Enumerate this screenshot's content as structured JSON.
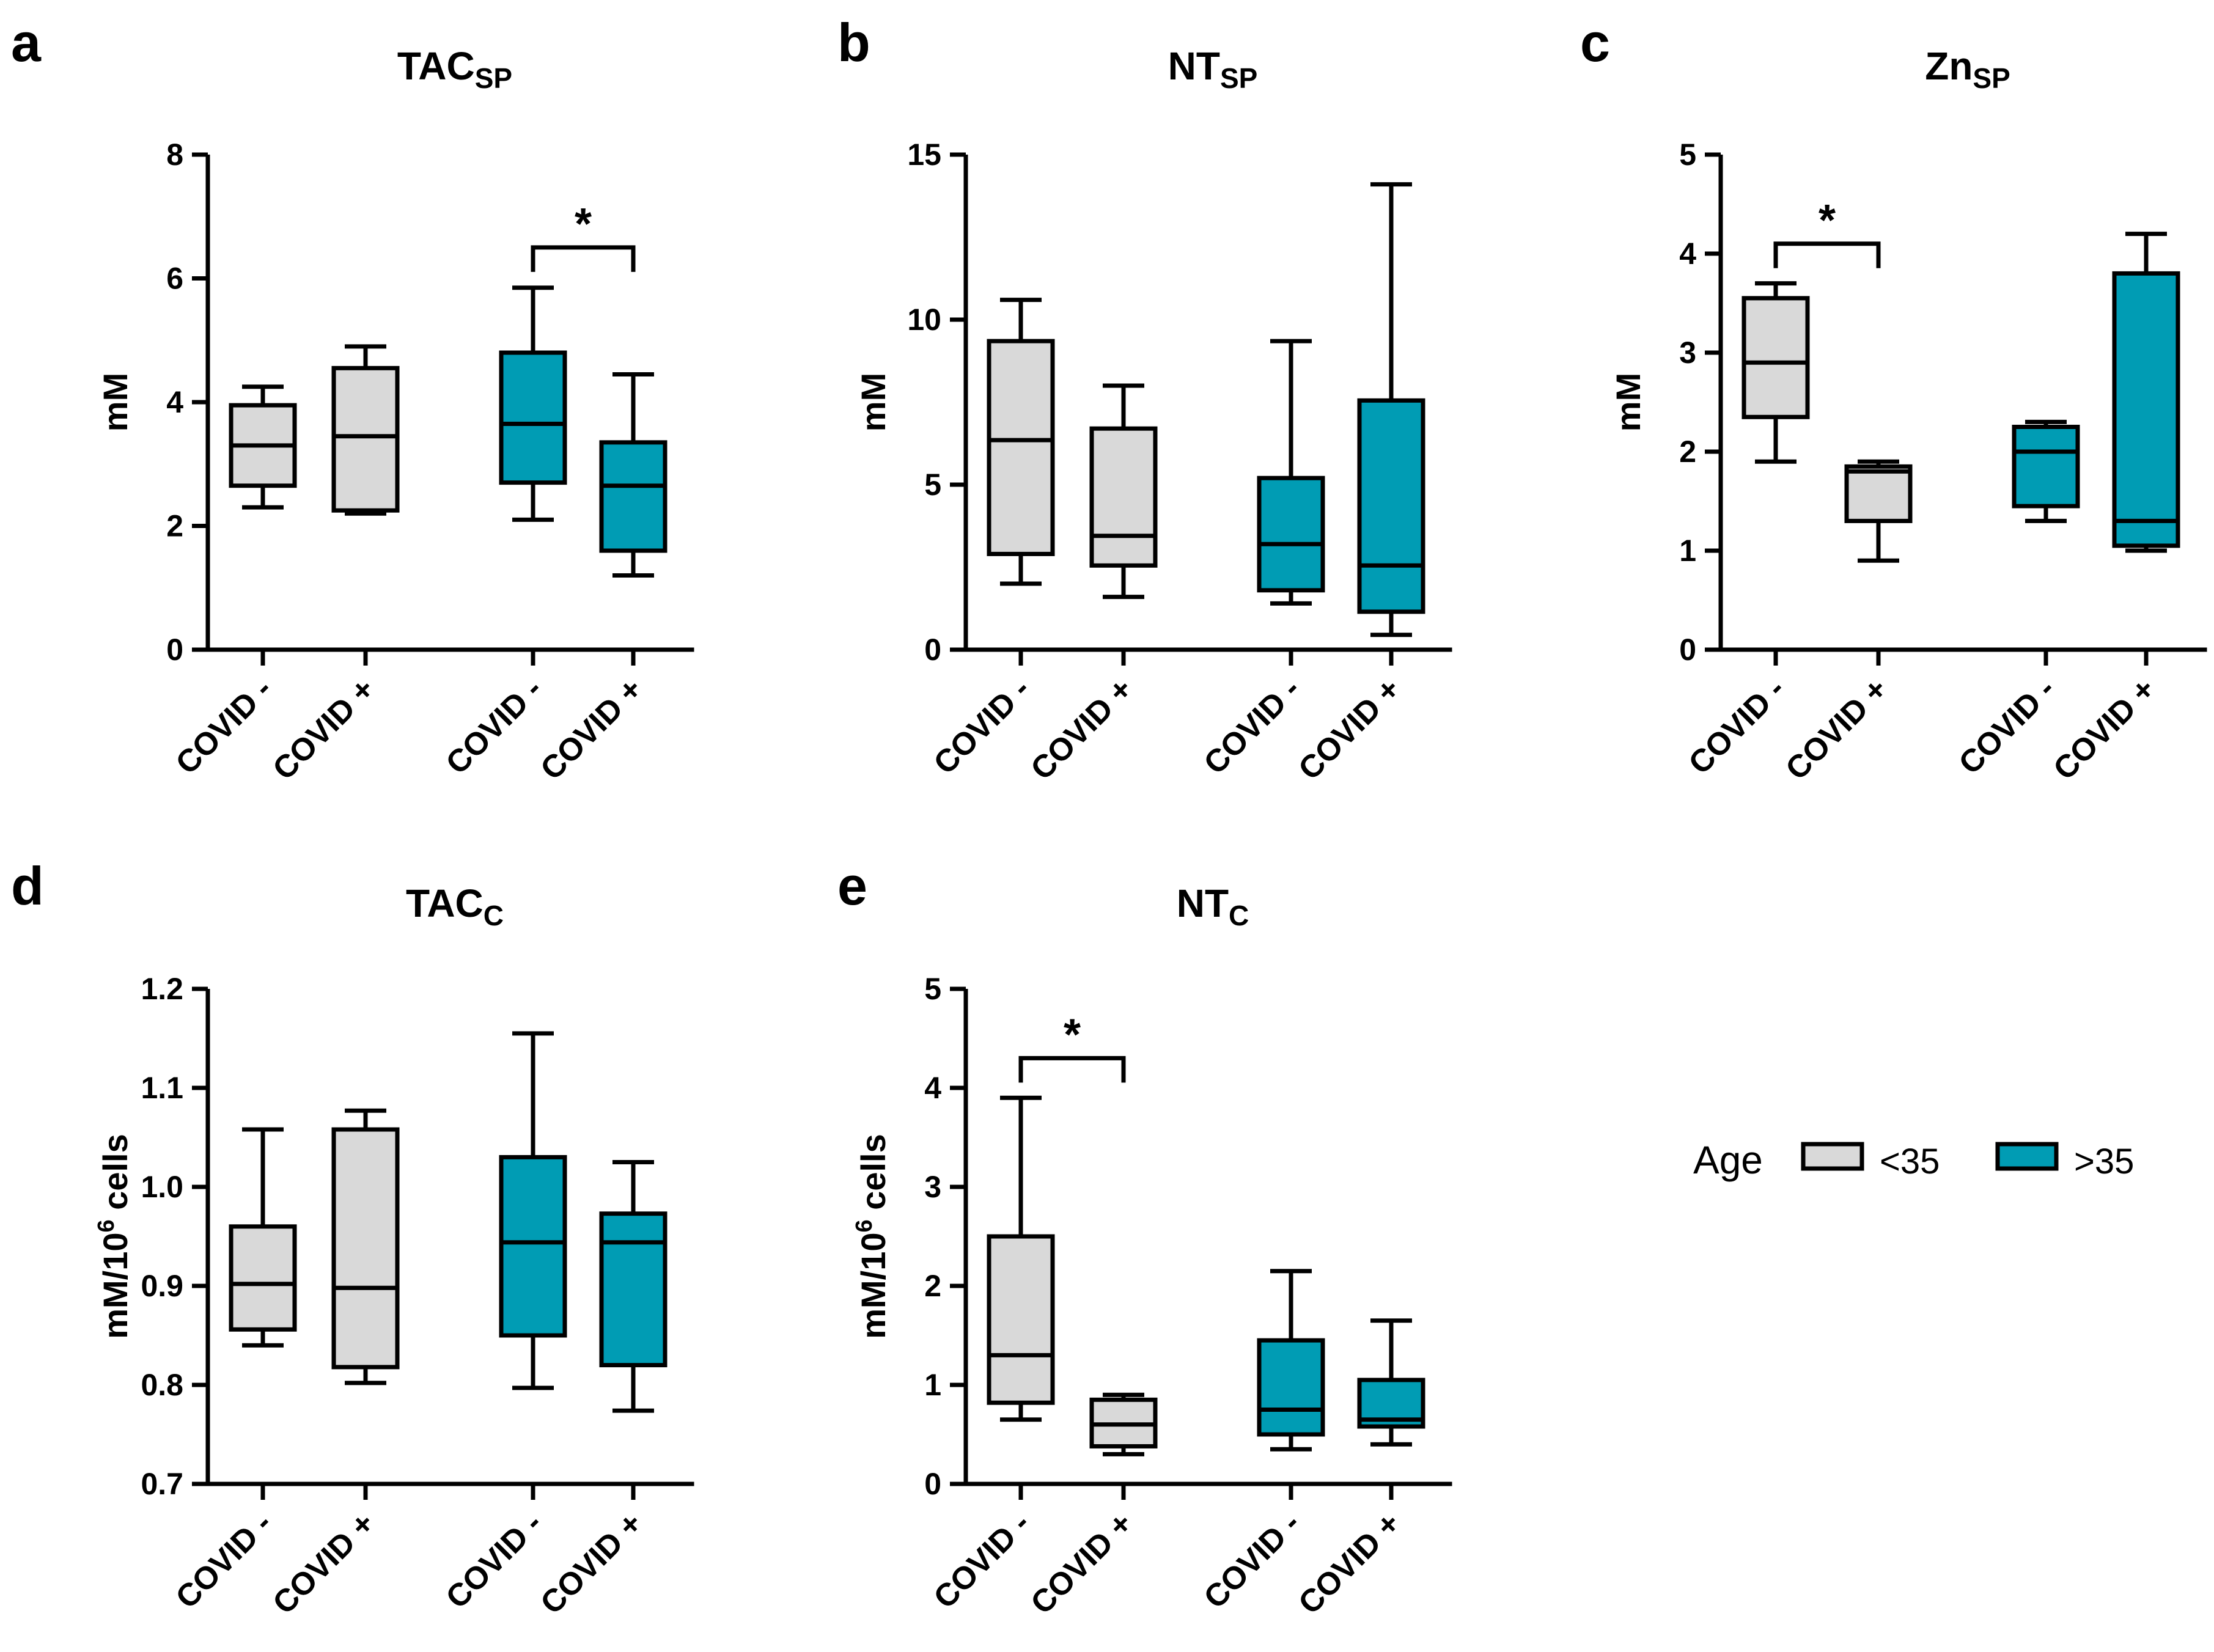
{
  "colors": {
    "young": "#D9D9D9",
    "old": "#009CB4",
    "stroke": "#000000"
  },
  "legend": {
    "title": "Age",
    "items": [
      {
        "label": "<35",
        "color": "#D9D9D9"
      },
      {
        "label": ">35",
        "color": "#009CB4"
      }
    ]
  },
  "chart_data": [
    {
      "type": "box",
      "panel": "a",
      "title_main": "TAC",
      "title_sub": "SP",
      "ylabel": "mM",
      "ylabel_sup": "",
      "ylabel_tail": "",
      "ylim": [
        0,
        8
      ],
      "yticks": [
        0,
        2,
        4,
        6,
        8
      ],
      "tick_decimals": 0,
      "categories": [
        "COVID -",
        "COVID +",
        "COVID -",
        "COVID +"
      ],
      "groups": [
        "<35",
        "<35",
        ">35",
        ">35"
      ],
      "boxes": [
        {
          "min": 2.3,
          "q1": 2.65,
          "median": 3.3,
          "q3": 3.95,
          "max": 4.25
        },
        {
          "min": 2.2,
          "q1": 2.25,
          "median": 3.45,
          "q3": 4.55,
          "max": 4.9
        },
        {
          "min": 2.1,
          "q1": 2.7,
          "median": 3.65,
          "q3": 4.8,
          "max": 5.85
        },
        {
          "min": 1.2,
          "q1": 1.6,
          "median": 2.65,
          "q3": 3.35,
          "max": 4.45
        }
      ],
      "significance": [
        {
          "from": 2,
          "to": 3,
          "y": 6.5,
          "label": "*"
        }
      ]
    },
    {
      "type": "box",
      "panel": "b",
      "title_main": "NT",
      "title_sub": "SP",
      "ylabel": "mM",
      "ylabel_sup": "",
      "ylabel_tail": "",
      "ylim": [
        0,
        15
      ],
      "yticks": [
        0,
        5,
        10,
        15
      ],
      "tick_decimals": 0,
      "categories": [
        "COVID -",
        "COVID +",
        "COVID -",
        "COVID +"
      ],
      "groups": [
        "<35",
        "<35",
        ">35",
        ">35"
      ],
      "boxes": [
        {
          "min": 2.0,
          "q1": 2.9,
          "median": 6.35,
          "q3": 9.35,
          "max": 10.6
        },
        {
          "min": 1.6,
          "q1": 2.55,
          "median": 3.45,
          "q3": 6.7,
          "max": 8.0
        },
        {
          "min": 1.4,
          "q1": 1.8,
          "median": 3.2,
          "q3": 5.2,
          "max": 9.35
        },
        {
          "min": 0.45,
          "q1": 1.15,
          "median": 2.55,
          "q3": 7.55,
          "max": 14.1
        }
      ],
      "significance": []
    },
    {
      "type": "box",
      "panel": "c",
      "title_main": "Zn",
      "title_sub": "SP",
      "ylabel": "mM",
      "ylabel_sup": "",
      "ylabel_tail": "",
      "ylim": [
        0,
        5
      ],
      "yticks": [
        0,
        1,
        2,
        3,
        4,
        5
      ],
      "tick_decimals": 0,
      "categories": [
        "COVID -",
        "COVID +",
        "COVID -",
        "COVID +"
      ],
      "groups": [
        "<35",
        "<35",
        ">35",
        ">35"
      ],
      "boxes": [
        {
          "min": 1.9,
          "q1": 2.35,
          "median": 2.9,
          "q3": 3.55,
          "max": 3.7
        },
        {
          "min": 0.9,
          "q1": 1.3,
          "median": 1.8,
          "q3": 1.85,
          "max": 1.9
        },
        {
          "min": 1.3,
          "q1": 1.45,
          "median": 2.0,
          "q3": 2.25,
          "max": 2.3
        },
        {
          "min": 1.0,
          "q1": 1.05,
          "median": 1.3,
          "q3": 3.8,
          "max": 4.2
        }
      ],
      "significance": [
        {
          "from": 0,
          "to": 1,
          "y": 4.1,
          "label": "*"
        }
      ]
    },
    {
      "type": "box",
      "panel": "d",
      "title_main": "TAC",
      "title_sub": "C",
      "ylabel": "mM/10",
      "ylabel_sup": "6",
      "ylabel_tail": " cells",
      "ylim": [
        0.7,
        1.2
      ],
      "yticks": [
        0.7,
        0.8,
        0.9,
        1.0,
        1.1,
        1.2
      ],
      "tick_decimals": 1,
      "categories": [
        "COVID -",
        "COVID +",
        "COVID -",
        "COVID +"
      ],
      "groups": [
        "<35",
        "<35",
        ">35",
        ">35"
      ],
      "boxes": [
        {
          "min": 0.84,
          "q1": 0.856,
          "median": 0.902,
          "q3": 0.96,
          "max": 1.058
        },
        {
          "min": 0.802,
          "q1": 0.818,
          "median": 0.898,
          "q3": 1.058,
          "max": 1.077
        },
        {
          "min": 0.797,
          "q1": 0.85,
          "median": 0.944,
          "q3": 1.03,
          "max": 1.155
        },
        {
          "min": 0.774,
          "q1": 0.82,
          "median": 0.944,
          "q3": 0.973,
          "max": 1.025
        }
      ],
      "significance": []
    },
    {
      "type": "box",
      "panel": "e",
      "title_main": "NT",
      "title_sub": "C",
      "ylabel": "mM/10",
      "ylabel_sup": "6",
      "ylabel_tail": " cells",
      "ylim": [
        0,
        5
      ],
      "yticks": [
        0,
        1,
        2,
        3,
        4,
        5
      ],
      "tick_decimals": 0,
      "categories": [
        "COVID -",
        "COVID +",
        "COVID -",
        "COVID +"
      ],
      "groups": [
        "<35",
        "<35",
        ">35",
        ">35"
      ],
      "boxes": [
        {
          "min": 0.65,
          "q1": 0.82,
          "median": 1.3,
          "q3": 2.5,
          "max": 3.9
        },
        {
          "min": 0.3,
          "q1": 0.38,
          "median": 0.6,
          "q3": 0.85,
          "max": 0.9
        },
        {
          "min": 0.35,
          "q1": 0.5,
          "median": 0.75,
          "q3": 1.45,
          "max": 2.15
        },
        {
          "min": 0.4,
          "q1": 0.58,
          "median": 0.65,
          "q3": 1.05,
          "max": 1.65
        }
      ],
      "significance": [
        {
          "from": 0,
          "to": 1,
          "y": 4.3,
          "label": "*"
        }
      ]
    }
  ]
}
